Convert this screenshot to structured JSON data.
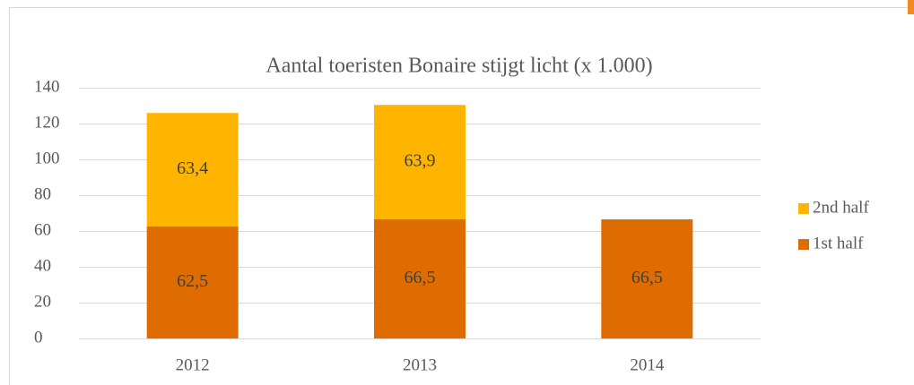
{
  "chart_data": {
    "type": "stacked_bar",
    "title": "Aantal toeristen Bonaire stijgt licht (x 1.000)",
    "categories": [
      "2012",
      "2013",
      "2014"
    ],
    "series": [
      {
        "name": "1st half",
        "color": "#df6c00",
        "values": [
          62.5,
          66.5,
          66.5
        ],
        "value_labels": [
          "62,5",
          "66,5",
          "66,5"
        ]
      },
      {
        "name": "2nd half",
        "color": "#ffb400",
        "values": [
          63.4,
          63.9,
          null
        ],
        "value_labels": [
          "63,4",
          "63,9",
          null
        ]
      }
    ],
    "ylim": [
      0,
      140
    ],
    "yticks": [
      0,
      20,
      40,
      60,
      80,
      100,
      120,
      140
    ],
    "grid": true,
    "legend": "right"
  }
}
